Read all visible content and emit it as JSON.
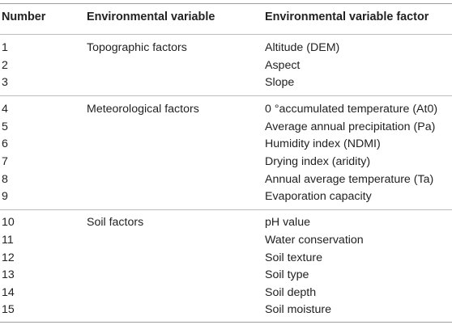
{
  "header": {
    "number": "Number",
    "variable": "Environmental variable",
    "factor": "Environmental variable factor"
  },
  "groups": [
    {
      "variable": "Topographic factors",
      "rows": [
        {
          "number": "1",
          "factor": "Altitude (DEM)"
        },
        {
          "number": "2",
          "factor": "Aspect"
        },
        {
          "number": "3",
          "factor": "Slope"
        }
      ]
    },
    {
      "variable": "Meteorological factors",
      "rows": [
        {
          "number": "4",
          "factor": "0 °accumulated temperature (At0)"
        },
        {
          "number": "5",
          "factor": "Average annual precipitation (Pa)"
        },
        {
          "number": "6",
          "factor": "Humidity index (NDMI)"
        },
        {
          "number": "7",
          "factor": "Drying index (aridity)"
        },
        {
          "number": "8",
          "factor": "Annual average temperature (Ta)"
        },
        {
          "number": "9",
          "factor": "Evaporation capacity"
        }
      ]
    },
    {
      "variable": "Soil factors",
      "rows": [
        {
          "number": "10",
          "factor": "pH value"
        },
        {
          "number": "11",
          "factor": "Water conservation"
        },
        {
          "number": "12",
          "factor": "Soil texture"
        },
        {
          "number": "13",
          "factor": "Soil type"
        },
        {
          "number": "14",
          "factor": "Soil depth"
        },
        {
          "number": "15",
          "factor": "Soil moisture"
        }
      ]
    }
  ]
}
